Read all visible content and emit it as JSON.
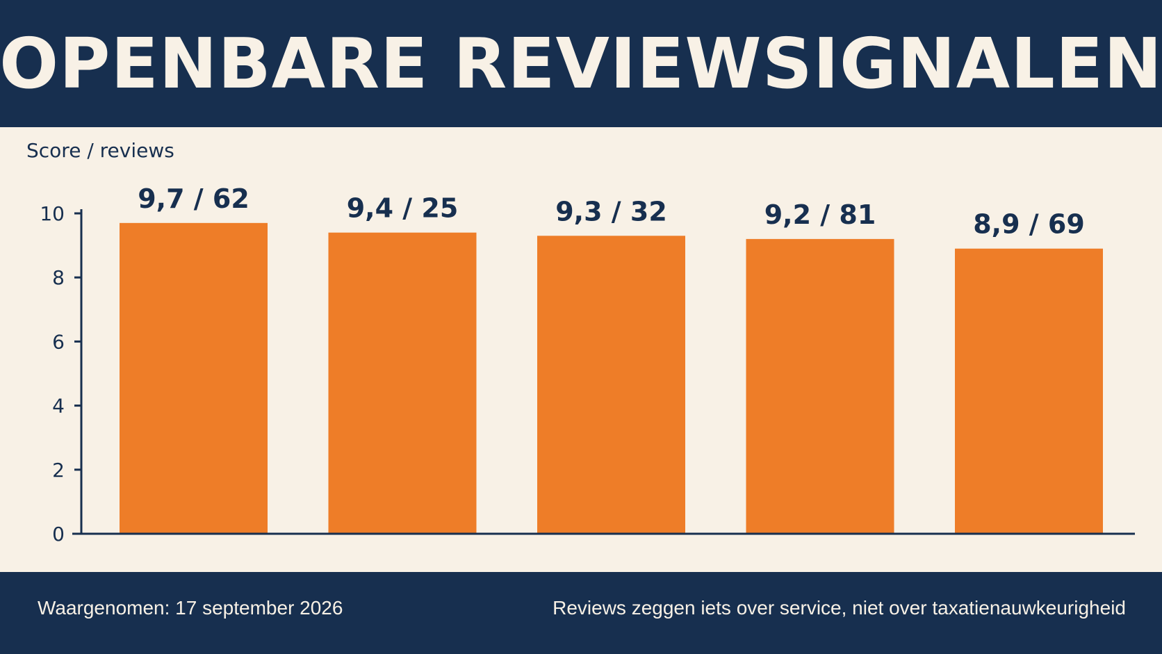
{
  "header": {
    "title": "OPENBARE REVIEWSIGNALEN"
  },
  "footer": {
    "observed": "Waargenomen: 17 september 2026",
    "note": "Reviews zeggen iets over service, niet over taxatienauwkeurigheid"
  },
  "colors": {
    "bar": "#ee7d28",
    "navy": "#172f4f",
    "background": "#f8f1e6"
  },
  "chart_data": {
    "type": "bar",
    "title": "",
    "ylabel": "Score / reviews",
    "xlabel": "",
    "ylim": [
      0,
      10
    ],
    "yticks": [
      "0",
      "2",
      "4",
      "6",
      "8",
      "10"
    ],
    "grid": false,
    "values": [
      9.7,
      9.4,
      9.3,
      9.2,
      8.9
    ],
    "reviews": [
      62,
      25,
      32,
      81,
      69
    ],
    "data_labels": [
      "9,7 / 62",
      "9,4 / 25",
      "9,3 / 32",
      "9,2 / 81",
      "8,9 / 69"
    ]
  }
}
